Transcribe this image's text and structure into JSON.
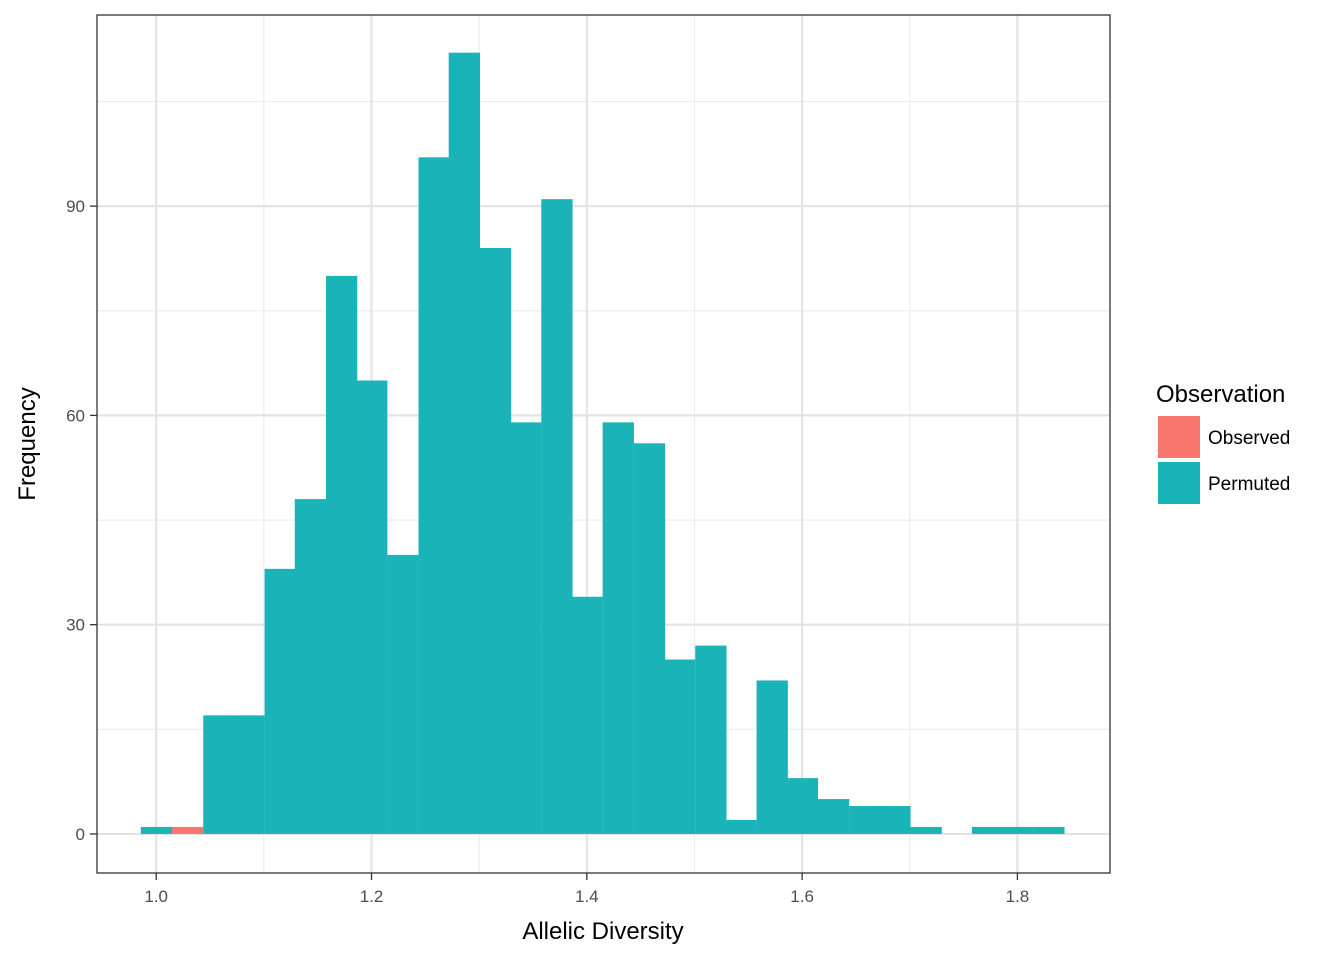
{
  "chart_data": {
    "type": "bar",
    "title": "",
    "xlabel": "Allelic Diversity",
    "ylabel": "Frequency",
    "xlim": [
      0.945,
      1.886
    ],
    "ylim": [
      -5.6,
      117.4
    ],
    "x_ticks": [
      1.0,
      1.2,
      1.4,
      1.6,
      1.8
    ],
    "x_tick_labels": [
      "1.0",
      "1.2",
      "1.4",
      "1.6",
      "1.8"
    ],
    "y_ticks": [
      0,
      30,
      60,
      90
    ],
    "y_tick_labels": [
      "0",
      "30",
      "60",
      "90"
    ],
    "grid": true,
    "bin_width": 0.0286,
    "legend": {
      "title": "Observation",
      "position": "right",
      "entries": [
        {
          "label": "Observed",
          "color": "#F8766D"
        },
        {
          "label": "Permuted",
          "color": "#19B3B8"
        }
      ]
    },
    "series": [
      {
        "name": "Permuted",
        "color": "#19B3B8",
        "bins": [
          {
            "x": 1.0,
            "count": 1
          },
          {
            "x": 1.029,
            "count": 0
          },
          {
            "x": 1.058,
            "count": 17
          },
          {
            "x": 1.086,
            "count": 17
          },
          {
            "x": 1.115,
            "count": 38
          },
          {
            "x": 1.143,
            "count": 48
          },
          {
            "x": 1.172,
            "count": 80
          },
          {
            "x": 1.2,
            "count": 65
          },
          {
            "x": 1.229,
            "count": 40
          },
          {
            "x": 1.258,
            "count": 97
          },
          {
            "x": 1.286,
            "count": 112
          },
          {
            "x": 1.315,
            "count": 84
          },
          {
            "x": 1.343,
            "count": 59
          },
          {
            "x": 1.372,
            "count": 91
          },
          {
            "x": 1.4,
            "count": 34
          },
          {
            "x": 1.429,
            "count": 59
          },
          {
            "x": 1.458,
            "count": 56
          },
          {
            "x": 1.486,
            "count": 25
          },
          {
            "x": 1.515,
            "count": 27
          },
          {
            "x": 1.543,
            "count": 2
          },
          {
            "x": 1.572,
            "count": 22
          },
          {
            "x": 1.6,
            "count": 8
          },
          {
            "x": 1.629,
            "count": 5
          },
          {
            "x": 1.658,
            "count": 4
          },
          {
            "x": 1.686,
            "count": 4
          },
          {
            "x": 1.715,
            "count": 1
          },
          {
            "x": 1.743,
            "count": 0
          },
          {
            "x": 1.772,
            "count": 1
          },
          {
            "x": 1.8,
            "count": 1
          },
          {
            "x": 1.829,
            "count": 1
          }
        ]
      },
      {
        "name": "Observed",
        "color": "#F8766D",
        "bins": [
          {
            "x": 1.029,
            "count": 1
          }
        ]
      }
    ]
  }
}
